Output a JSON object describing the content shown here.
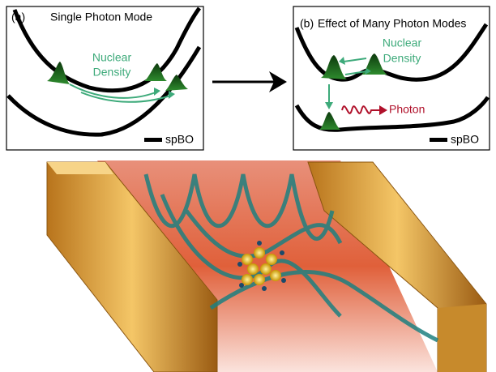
{
  "panel_a": {
    "label": "(a)",
    "title": "Single Photon Mode",
    "density_label": [
      "Nuclear",
      "Density"
    ],
    "legend": "spBO"
  },
  "panel_b": {
    "label": "(b)",
    "title": "Effect of Many Photon Modes",
    "density_label": [
      "Nuclear",
      "Density"
    ],
    "photon_label": "Photon",
    "legend": "spBO"
  }
}
